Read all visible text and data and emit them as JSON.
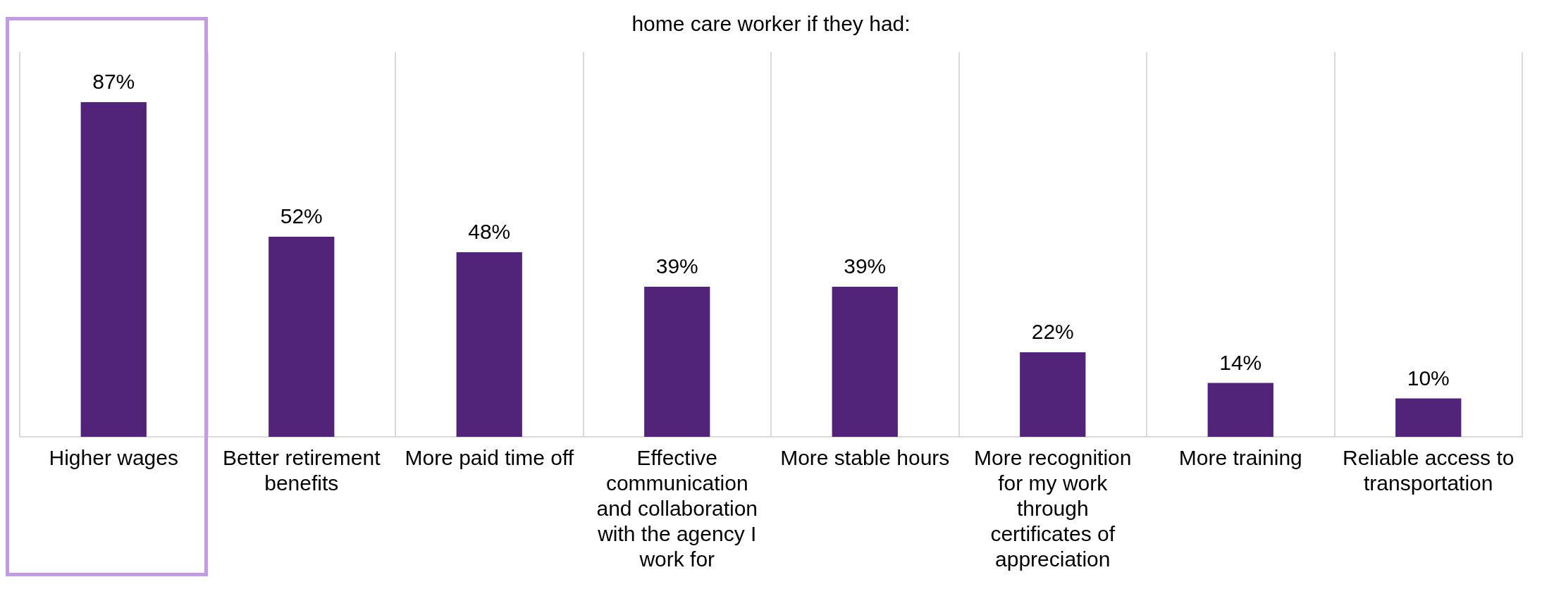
{
  "chart_data": {
    "type": "bar",
    "title": "home care worker if they had:",
    "categories": [
      "Higher wages",
      "Better retirement benefits",
      "More paid time off",
      "Effective communication and collaboration with the agency I work for",
      "More stable hours",
      "More recognition for my work through certificates of appreciation",
      "More training",
      "Reliable access to transportation"
    ],
    "values": [
      87,
      52,
      48,
      39,
      39,
      22,
      14,
      10
    ],
    "color": "#51247a",
    "value_labels": [
      "87%",
      "52%",
      "48%",
      "39%",
      "39%",
      "22%",
      "14%",
      "10%"
    ],
    "grid": "x",
    "tick_labels": "x",
    "legend": false
  }
}
